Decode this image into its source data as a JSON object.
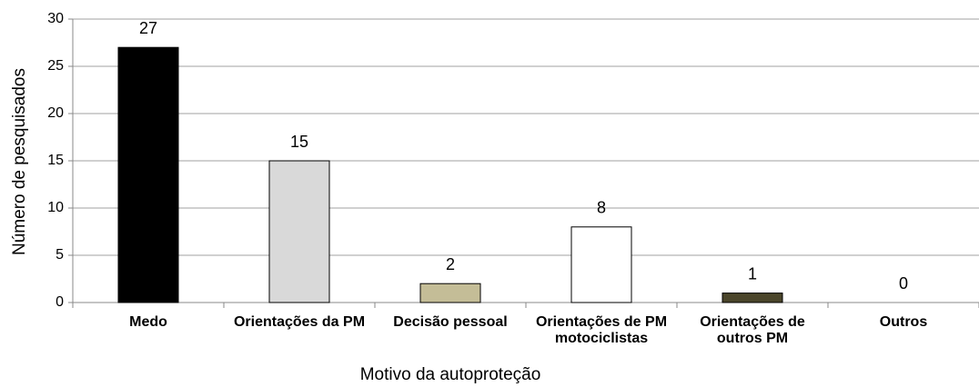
{
  "chart_data": {
    "type": "bar",
    "x_label": "Motivo da autoproteção",
    "y_label": "Número de pesquisados",
    "categories": [
      "Medo",
      "Orientações da PM",
      "Decisão pessoal",
      "Orientações de PM motociclistas",
      "Orientações de outros PM",
      "Outros"
    ],
    "values": [
      27,
      15,
      2,
      8,
      1,
      0
    ],
    "colors": [
      "#000000",
      "#d9d9d9",
      "#c4bd97",
      "#ffffff",
      "#4a452a",
      "#ffffff"
    ],
    "ylim": [
      0,
      30
    ],
    "yticks": [
      0,
      5,
      10,
      15,
      20,
      25,
      30
    ],
    "grid": true
  }
}
